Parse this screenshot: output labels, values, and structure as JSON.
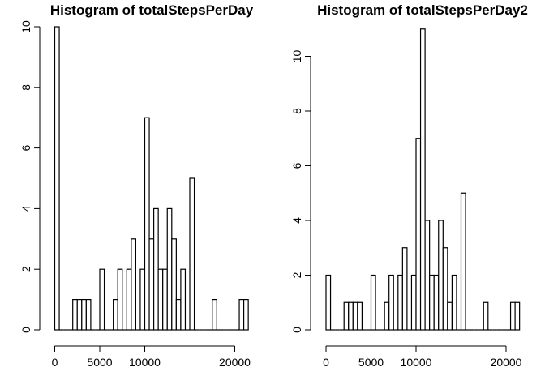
{
  "chart_data": [
    {
      "type": "bar",
      "title": "Histogram of totalStepsPerDay",
      "xlabel": "",
      "ylabel": "",
      "bin_width": 500,
      "bin_start": 0,
      "counts": [
        10,
        0,
        0,
        0,
        1,
        1,
        1,
        1,
        0,
        0,
        2,
        0,
        0,
        1,
        2,
        0,
        2,
        3,
        0,
        2,
        7,
        3,
        4,
        2,
        2,
        4,
        3,
        1,
        2,
        0,
        5,
        0,
        0,
        0,
        0,
        1,
        0,
        0,
        0,
        0,
        0,
        1,
        1
      ],
      "xlim": [
        0,
        21500
      ],
      "ylim": [
        0,
        10
      ],
      "xticks": [
        0,
        5000,
        10000,
        20000
      ],
      "xtick_labels": [
        "0",
        "5000",
        "10000",
        "20000"
      ],
      "yticks": [
        0,
        2,
        4,
        6,
        8,
        10
      ],
      "ytick_labels": [
        "0",
        "2",
        "4",
        "6",
        "8",
        "10"
      ],
      "grid": false,
      "legend": "none"
    },
    {
      "type": "bar",
      "title": "Histogram of totalStepsPerDay2",
      "xlabel": "",
      "ylabel": "",
      "bin_width": 500,
      "bin_start": 0,
      "counts": [
        2,
        0,
        0,
        0,
        1,
        1,
        1,
        1,
        0,
        0,
        2,
        0,
        0,
        1,
        2,
        0,
        2,
        3,
        0,
        2,
        7,
        11,
        4,
        2,
        2,
        4,
        3,
        1,
        2,
        0,
        5,
        0,
        0,
        0,
        0,
        1,
        0,
        0,
        0,
        0,
        0,
        1,
        1
      ],
      "xlim": [
        0,
        21500
      ],
      "ylim": [
        0,
        11
      ],
      "xticks": [
        0,
        5000,
        10000,
        20000
      ],
      "xtick_labels": [
        "0",
        "5000",
        "10000",
        "20000"
      ],
      "yticks": [
        0,
        2,
        4,
        6,
        8,
        10
      ],
      "ytick_labels": [
        "0",
        "2",
        "4",
        "6",
        "8",
        "10"
      ],
      "grid": false,
      "legend": "none"
    }
  ]
}
